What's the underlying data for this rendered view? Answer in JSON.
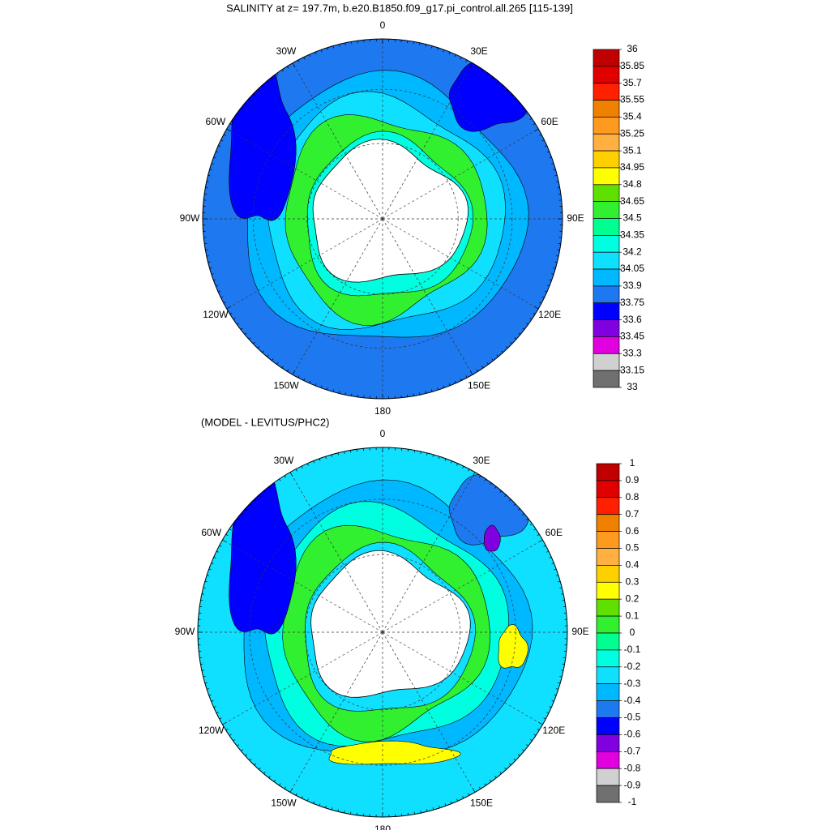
{
  "panels": [
    {
      "title": "SALINITY at z= 197.7m, b.e20.B1850.f09_g17.pi_control.all.265 [115-139]",
      "lon_labels": [
        "0",
        "30E",
        "60E",
        "90E",
        "120E",
        "150E",
        "180",
        "150W",
        "120W",
        "90W",
        "60W",
        "30W"
      ],
      "colorbar": {
        "levels": [
          36,
          35.85,
          35.7,
          35.55,
          35.4,
          35.25,
          35.1,
          34.95,
          34.8,
          34.65,
          34.5,
          34.35,
          34.2,
          34.05,
          33.9,
          33.75,
          33.6,
          33.45,
          33.3,
          33.15,
          33
        ],
        "colors": [
          "#c00000",
          "#e00000",
          "#ff2000",
          "#f08000",
          "#ff9a20",
          "#ffb040",
          "#ffd000",
          "#ffff00",
          "#60e000",
          "#30f030",
          "#00ff90",
          "#00ffe0",
          "#10e0ff",
          "#00b8ff",
          "#1e78f0",
          "#0000ff",
          "#8000e0",
          "#e000e0",
          "#d0d0d0",
          "#707070"
        ]
      }
    },
    {
      "title": "(MODEL - LEVITUS/PHC2)",
      "lon_labels": [
        "0",
        "30E",
        "60E",
        "90E",
        "120E",
        "150E",
        "180",
        "150W",
        "120W",
        "90W",
        "60W",
        "30W"
      ],
      "colorbar": {
        "levels": [
          1,
          0.9,
          0.8,
          0.7,
          0.6,
          0.5,
          0.4,
          0.3,
          0.2,
          0.1,
          0,
          -0.1,
          -0.2,
          -0.3,
          -0.4,
          -0.5,
          -0.6,
          -0.7,
          -0.8,
          -0.9,
          -1
        ],
        "colors": [
          "#c00000",
          "#e00000",
          "#ff2000",
          "#f08000",
          "#ff9a20",
          "#ffb040",
          "#ffd000",
          "#ffff00",
          "#60e000",
          "#30f030",
          "#00ff90",
          "#00ffe0",
          "#10e0ff",
          "#00b8ff",
          "#1e78f0",
          "#0000ff",
          "#8000e0",
          "#e000e0",
          "#d0d0d0",
          "#707070"
        ]
      }
    }
  ]
}
